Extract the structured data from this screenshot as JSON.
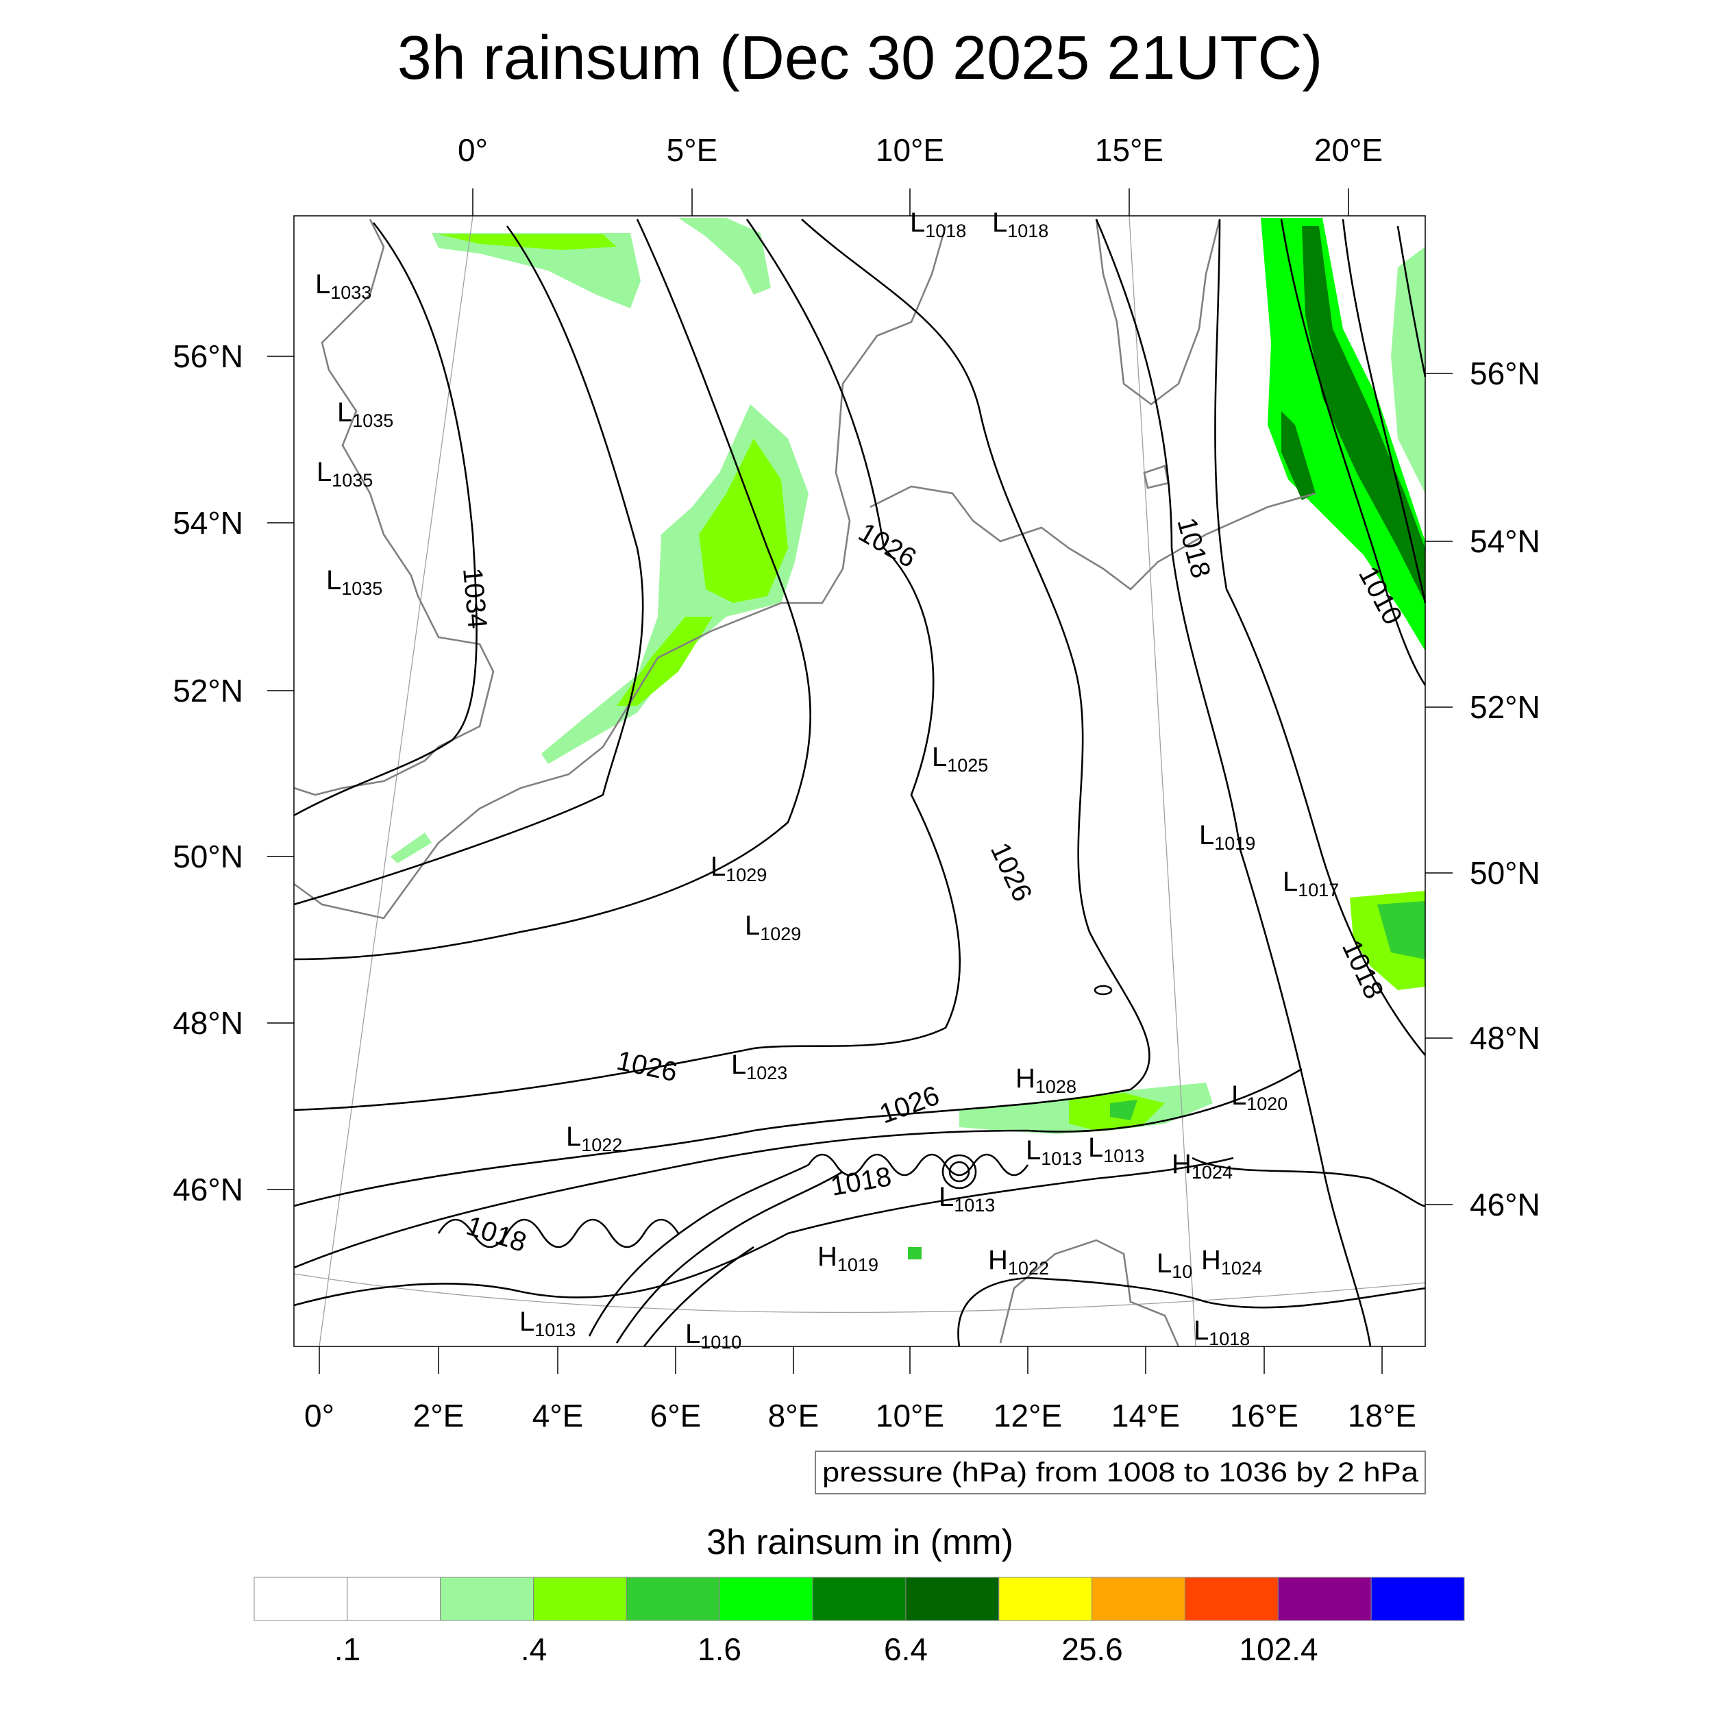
{
  "title": "3h rainsum (Dec 30 2025 21UTC)",
  "axes": {
    "top_lon": [
      "0°",
      "5°E",
      "10°E",
      "15°E",
      "20°E"
    ],
    "bottom_lon": [
      "0°",
      "2°E",
      "4°E",
      "6°E",
      "8°E",
      "10°E",
      "12°E",
      "14°E",
      "16°E",
      "18°E"
    ],
    "left_lat": [
      "56°N",
      "54°N",
      "52°N",
      "50°N",
      "48°N",
      "46°N"
    ],
    "right_lat": [
      "56°N",
      "54°N",
      "52°N",
      "50°N",
      "48°N",
      "46°N"
    ]
  },
  "contour_info": "pressure (hPa) from 1008 to 1036 by 2 hPa",
  "pressure_labels": [
    {
      "t": "L",
      "v": "1033"
    },
    {
      "t": "L",
      "v": "1035"
    },
    {
      "t": "L",
      "v": "1035"
    },
    {
      "t": "L",
      "v": "1035"
    },
    {
      "t": "L",
      "v": "1018"
    },
    {
      "t": "L",
      "v": "1018"
    },
    {
      "t": "L",
      "v": "1025"
    },
    {
      "t": "L",
      "v": "1019"
    },
    {
      "t": "L",
      "v": "1017"
    },
    {
      "t": "L",
      "v": "1029"
    },
    {
      "t": "L",
      "v": "1029"
    },
    {
      "t": "L",
      "v": "1023"
    },
    {
      "t": "H",
      "v": "1028"
    },
    {
      "t": "L",
      "v": "1020"
    },
    {
      "t": "L",
      "v": "1022"
    },
    {
      "t": "L",
      "v": "1013"
    },
    {
      "t": "L",
      "v": "1013"
    },
    {
      "t": "H",
      "v": "1024"
    },
    {
      "t": "L",
      "v": "1013"
    },
    {
      "t": "H",
      "v": "1019"
    },
    {
      "t": "H",
      "v": "1022"
    },
    {
      "t": "L",
      "v": "10"
    },
    {
      "t": "H",
      "v": "1024"
    },
    {
      "t": "L",
      "v": "1013"
    },
    {
      "t": "L",
      "v": "1010"
    },
    {
      "t": "L",
      "v": "1018"
    }
  ],
  "isobar_labels": [
    "1034",
    "1026",
    "1018",
    "1010",
    "1026",
    "1018",
    "1026",
    "1026",
    "1018",
    "1018"
  ],
  "colorbar": {
    "title": "3h rainsum in (mm)",
    "colors": [
      "#ffffff",
      "#ffffff",
      "#9cf79c",
      "#80ff00",
      "#32cd32",
      "#00ff00",
      "#008000",
      "#006400",
      "#ffff00",
      "#ffa500",
      "#ff4500",
      "#8b008b",
      "#0000ff"
    ],
    "labels": [
      ".1",
      ".4",
      "1.6",
      "6.4",
      "25.6",
      "102.4"
    ]
  },
  "rain_colors": {
    "light": "#9cf79c",
    "lime": "#80ff00",
    "mid": "#32cd32",
    "bright": "#00ff00",
    "dark": "#008000",
    "darker": "#006400"
  }
}
